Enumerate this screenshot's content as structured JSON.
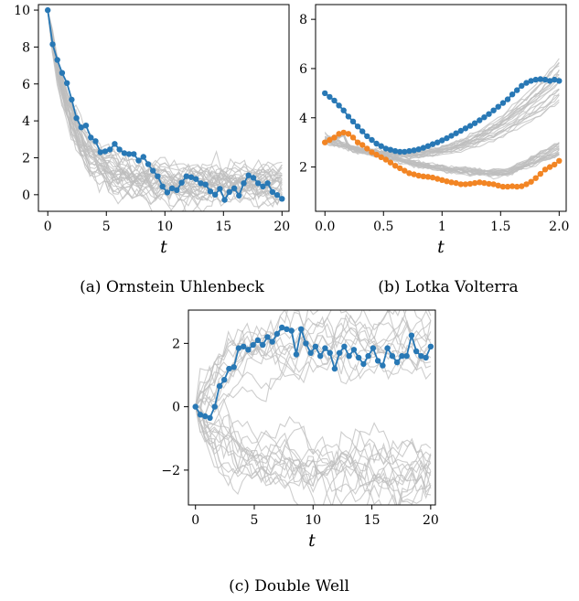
{
  "figure": {
    "captions": [
      "(a) Ornstein Uhlenbeck",
      "(b) Lotka Volterra",
      "(c) Double Well"
    ]
  },
  "colors": {
    "blue": "#2878b5",
    "orange": "#f28524",
    "gray": "#bdbdbd",
    "frame": "#000000"
  },
  "chart_data": [
    {
      "type": "line",
      "caption": "(a) Ornstein Uhlenbeck",
      "xlabel": "t",
      "ylabel": "",
      "xlim": [
        -0.8,
        20.6
      ],
      "ylim": [
        -0.9,
        10.3
      ],
      "xticks": [
        0,
        5,
        10,
        15,
        20
      ],
      "yticks": [
        0,
        2,
        4,
        6,
        8,
        10
      ],
      "grid": false,
      "legend": "none",
      "series": [
        {
          "role": "highlighted",
          "color": "#2878b5",
          "markers": true,
          "x": [
            0,
            0.408,
            0.816,
            1.224,
            1.633,
            2.041,
            2.449,
            2.857,
            3.265,
            3.673,
            4.082,
            4.49,
            4.898,
            5.306,
            5.714,
            6.122,
            6.531,
            6.939,
            7.347,
            7.755,
            8.163,
            8.571,
            8.98,
            9.388,
            9.796,
            10.204,
            10.612,
            11.02,
            11.429,
            11.837,
            12.245,
            12.653,
            13.061,
            13.469,
            13.878,
            14.286,
            14.694,
            15.102,
            15.51,
            15.918,
            16.327,
            16.735,
            17.143,
            17.551,
            17.959,
            18.367,
            18.776,
            19.184,
            19.592,
            20.0
          ],
          "y": [
            10.0,
            8.15,
            7.3,
            6.6,
            6.05,
            5.15,
            4.15,
            3.65,
            3.75,
            3.1,
            2.9,
            2.3,
            2.35,
            2.45,
            2.75,
            2.45,
            2.25,
            2.2,
            2.2,
            1.85,
            2.05,
            1.65,
            1.3,
            1.0,
            0.45,
            0.12,
            0.35,
            0.25,
            0.65,
            1.0,
            0.95,
            0.85,
            0.62,
            0.55,
            0.18,
            0.0,
            0.32,
            -0.28,
            0.15,
            0.35,
            -0.05,
            0.62,
            1.05,
            0.92,
            0.62,
            0.45,
            0.62,
            0.15,
            -0.02,
            -0.22
          ]
        }
      ]
    },
    {
      "type": "line",
      "caption": "(b) Lotka Volterra",
      "xlabel": "t",
      "ylabel": "",
      "xlim": [
        -0.08,
        2.06
      ],
      "ylim": [
        0.2,
        8.6
      ],
      "xticks": [
        0.0,
        0.5,
        1,
        1.5,
        2.0
      ],
      "xticklabels": [
        "0.0",
        "0.5",
        "1",
        "1.5",
        "2.0"
      ],
      "yticks": [
        2,
        4,
        6,
        8
      ],
      "grid": false,
      "legend": "none",
      "series": [
        {
          "role": "highlighted",
          "color": "#2878b5",
          "markers": true,
          "x": [
            0,
            0.04,
            0.08,
            0.12,
            0.16,
            0.2,
            0.24,
            0.28,
            0.32,
            0.36,
            0.4,
            0.44,
            0.48,
            0.52,
            0.56,
            0.6,
            0.64,
            0.68,
            0.72,
            0.76,
            0.8,
            0.84,
            0.88,
            0.92,
            0.96,
            1.0,
            1.04,
            1.08,
            1.12,
            1.16,
            1.2,
            1.24,
            1.28,
            1.32,
            1.36,
            1.4,
            1.44,
            1.48,
            1.52,
            1.56,
            1.6,
            1.64,
            1.68,
            1.72,
            1.76,
            1.8,
            1.84,
            1.88,
            1.92,
            1.96,
            2.0
          ],
          "y": [
            5.0,
            4.85,
            4.7,
            4.5,
            4.3,
            4.05,
            3.85,
            3.65,
            3.45,
            3.25,
            3.1,
            2.95,
            2.85,
            2.75,
            2.7,
            2.65,
            2.62,
            2.62,
            2.65,
            2.68,
            2.72,
            2.78,
            2.85,
            2.93,
            3.0,
            3.08,
            3.17,
            3.27,
            3.37,
            3.47,
            3.57,
            3.67,
            3.78,
            3.9,
            4.02,
            4.15,
            4.3,
            4.45,
            4.6,
            4.75,
            4.95,
            5.12,
            5.3,
            5.42,
            5.5,
            5.55,
            5.57,
            5.55,
            5.5,
            5.55,
            5.5
          ]
        },
        {
          "role": "highlighted",
          "color": "#f28524",
          "markers": true,
          "x": [
            0,
            0.04,
            0.08,
            0.12,
            0.16,
            0.2,
            0.24,
            0.28,
            0.32,
            0.36,
            0.4,
            0.44,
            0.48,
            0.52,
            0.56,
            0.6,
            0.64,
            0.68,
            0.72,
            0.76,
            0.8,
            0.84,
            0.88,
            0.92,
            0.96,
            1.0,
            1.04,
            1.08,
            1.12,
            1.16,
            1.2,
            1.24,
            1.28,
            1.32,
            1.36,
            1.4,
            1.44,
            1.48,
            1.52,
            1.56,
            1.6,
            1.64,
            1.68,
            1.72,
            1.76,
            1.8,
            1.84,
            1.88,
            1.92,
            1.96,
            2.0
          ],
          "y": [
            3.0,
            3.1,
            3.2,
            3.35,
            3.4,
            3.35,
            3.2,
            3.0,
            2.9,
            2.75,
            2.6,
            2.5,
            2.4,
            2.3,
            2.18,
            2.05,
            1.95,
            1.85,
            1.75,
            1.7,
            1.65,
            1.62,
            1.6,
            1.57,
            1.52,
            1.47,
            1.42,
            1.38,
            1.35,
            1.3,
            1.3,
            1.32,
            1.35,
            1.38,
            1.35,
            1.32,
            1.3,
            1.25,
            1.2,
            1.2,
            1.22,
            1.2,
            1.22,
            1.3,
            1.4,
            1.55,
            1.72,
            1.9,
            2.0,
            2.1,
            2.25
          ]
        }
      ]
    },
    {
      "type": "line",
      "caption": "(c) Double Well",
      "xlabel": "t",
      "ylabel": "",
      "xlim": [
        -0.6,
        20.4
      ],
      "ylim": [
        -3.1,
        3.05
      ],
      "xticks": [
        0,
        5,
        10,
        15,
        20
      ],
      "yticks": [
        -2,
        0,
        2
      ],
      "yticklabels": [
        "−2",
        "0",
        "2"
      ],
      "grid": false,
      "legend": "none",
      "series": [
        {
          "role": "highlighted",
          "color": "#2878b5",
          "markers": true,
          "x": [
            0,
            0.408,
            0.816,
            1.224,
            1.633,
            2.041,
            2.449,
            2.857,
            3.265,
            3.673,
            4.082,
            4.49,
            4.898,
            5.306,
            5.714,
            6.122,
            6.531,
            6.939,
            7.347,
            7.755,
            8.163,
            8.571,
            8.98,
            9.388,
            9.796,
            10.204,
            10.612,
            11.02,
            11.429,
            11.837,
            12.245,
            12.653,
            13.061,
            13.469,
            13.878,
            14.286,
            14.694,
            15.102,
            15.51,
            15.918,
            16.327,
            16.735,
            17.143,
            17.551,
            17.959,
            18.367,
            18.776,
            19.184,
            19.592,
            20.0
          ],
          "y": [
            0.0,
            -0.25,
            -0.3,
            -0.35,
            0.0,
            0.65,
            0.85,
            1.2,
            1.25,
            1.85,
            1.9,
            1.8,
            1.95,
            2.1,
            1.95,
            2.2,
            2.05,
            2.3,
            2.5,
            2.45,
            2.4,
            1.65,
            2.45,
            2.0,
            1.7,
            1.9,
            1.6,
            1.85,
            1.7,
            1.2,
            1.7,
            1.9,
            1.6,
            1.8,
            1.55,
            1.35,
            1.6,
            1.85,
            1.45,
            1.3,
            1.85,
            1.6,
            1.4,
            1.6,
            1.6,
            2.25,
            1.75,
            1.6,
            1.55,
            1.9
          ]
        }
      ]
    }
  ]
}
